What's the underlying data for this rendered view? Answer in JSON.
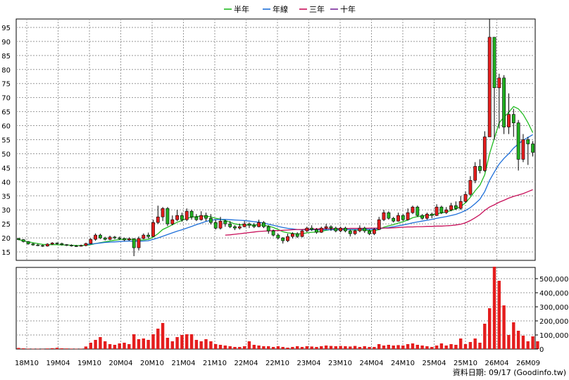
{
  "legend": [
    {
      "name": "半年",
      "color": "#22bb22"
    },
    {
      "name": "年線",
      "color": "#1e6fd9"
    },
    {
      "name": "三年",
      "color": "#c8105a"
    },
    {
      "name": "十年",
      "color": "#7a2a9a"
    }
  ],
  "footer_note": "資料日期: 09/17  (Goodinfo.tw)",
  "colors": {
    "up": "#e41d1d",
    "down": "#21b121",
    "volume": "#e41d1d",
    "grid": "#999999"
  },
  "chart_data": [
    {
      "type": "candlestick",
      "x_labels": [
        "18M10",
        "19M04",
        "19M10",
        "20M04",
        "20M10",
        "21M04",
        "21M10",
        "22M04",
        "22M10",
        "23M04",
        "23M10",
        "24M04",
        "24M10",
        "25M04",
        "25M10",
        "26M04",
        "26M09"
      ],
      "y_ticks": [
        15,
        20,
        25,
        30,
        35,
        40,
        45,
        50,
        55,
        60,
        65,
        70,
        75,
        80,
        85,
        90,
        95
      ],
      "ylim": [
        12,
        98
      ],
      "grid": true,
      "legend_position": "top-center",
      "candles": [
        [
          19.8,
          19.4,
          20.0,
          19.2
        ],
        [
          19.4,
          18.7,
          19.6,
          18.4
        ],
        [
          18.7,
          17.9,
          18.9,
          17.6
        ],
        [
          17.9,
          17.5,
          18.2,
          17.2
        ],
        [
          17.5,
          17.3,
          17.9,
          17.1
        ],
        [
          17.3,
          17.1,
          17.6,
          16.8
        ],
        [
          17.1,
          17.8,
          18.1,
          16.9
        ],
        [
          17.8,
          18.2,
          18.5,
          17.5
        ],
        [
          18.2,
          18.0,
          18.4,
          17.6
        ],
        [
          18.0,
          17.6,
          18.3,
          17.3
        ],
        [
          17.6,
          17.4,
          17.8,
          17.1
        ],
        [
          17.4,
          17.2,
          17.7,
          16.9
        ],
        [
          17.2,
          17.1,
          17.5,
          16.8
        ],
        [
          17.1,
          17.3,
          17.6,
          16.9
        ],
        [
          17.3,
          18.0,
          18.3,
          17.0
        ],
        [
          18.0,
          19.5,
          19.9,
          17.8
        ],
        [
          19.5,
          21.0,
          21.6,
          19.0
        ],
        [
          21.0,
          20.0,
          21.5,
          19.6
        ],
        [
          20.0,
          19.5,
          20.4,
          19.1
        ],
        [
          19.5,
          20.3,
          20.8,
          19.2
        ],
        [
          20.3,
          20.0,
          20.7,
          19.6
        ],
        [
          20.0,
          19.8,
          20.5,
          19.3
        ],
        [
          19.8,
          19.3,
          20.1,
          18.9
        ],
        [
          19.3,
          19.7,
          20.2,
          19.0
        ],
        [
          19.7,
          16.5,
          19.9,
          13.5
        ],
        [
          16.5,
          19.8,
          20.5,
          15.5
        ],
        [
          19.8,
          21.0,
          21.6,
          19.5
        ],
        [
          21.0,
          20.5,
          21.9,
          19.8
        ],
        [
          20.5,
          25.5,
          26.5,
          20.3
        ],
        [
          25.5,
          27.5,
          31.5,
          25.0
        ],
        [
          27.5,
          30.5,
          31.0,
          26.0
        ],
        [
          30.5,
          25.0,
          31.0,
          24.2
        ],
        [
          25.0,
          26.5,
          28.0,
          24.5
        ],
        [
          26.5,
          28.0,
          30.0,
          26.0
        ],
        [
          28.0,
          26.5,
          29.0,
          25.8
        ],
        [
          26.5,
          29.5,
          30.5,
          26.0
        ],
        [
          29.5,
          27.5,
          30.0,
          26.5
        ],
        [
          27.5,
          26.5,
          28.5,
          26.0
        ],
        [
          26.5,
          28.0,
          29.5,
          26.2
        ],
        [
          28.0,
          27.0,
          29.0,
          26.0
        ],
        [
          27.0,
          25.5,
          28.5,
          24.8
        ],
        [
          25.5,
          23.5,
          26.5,
          23.0
        ],
        [
          23.5,
          26.0,
          27.5,
          23.0
        ],
        [
          26.0,
          25.0,
          26.5,
          24.0
        ],
        [
          25.0,
          24.0,
          26.0,
          23.5
        ],
        [
          24.0,
          23.5,
          24.5,
          22.8
        ],
        [
          23.5,
          24.0,
          25.0,
          23.0
        ],
        [
          24.0,
          25.0,
          26.0,
          23.8
        ],
        [
          25.0,
          24.5,
          25.5,
          23.5
        ],
        [
          24.5,
          24.0,
          25.3,
          23.5
        ],
        [
          24.0,
          25.5,
          26.5,
          23.8
        ],
        [
          25.5,
          24.0,
          26.0,
          23.5
        ],
        [
          24.0,
          22.5,
          24.5,
          21.5
        ],
        [
          22.5,
          21.0,
          23.0,
          20.5
        ],
        [
          21.0,
          20.0,
          21.5,
          19.5
        ],
        [
          20.0,
          19.0,
          20.3,
          18.0
        ],
        [
          19.0,
          20.5,
          21.5,
          18.5
        ],
        [
          20.5,
          21.5,
          22.0,
          19.8
        ],
        [
          21.5,
          20.5,
          22.0,
          20.0
        ],
        [
          20.5,
          22.5,
          23.0,
          20.2
        ],
        [
          22.5,
          23.5,
          24.0,
          22.0
        ],
        [
          23.5,
          23.0,
          24.5,
          22.5
        ],
        [
          23.0,
          22.0,
          23.5,
          21.5
        ],
        [
          22.0,
          23.5,
          24.0,
          21.8
        ],
        [
          23.5,
          24.0,
          25.0,
          23.0
        ],
        [
          24.0,
          23.5,
          24.5,
          22.5
        ],
        [
          23.5,
          22.5,
          24.0,
          22.0
        ],
        [
          22.5,
          23.5,
          24.0,
          22.0
        ],
        [
          23.5,
          22.5,
          24.0,
          22.0
        ],
        [
          22.5,
          21.5,
          23.0,
          20.5
        ],
        [
          21.5,
          22.5,
          23.0,
          21.0
        ],
        [
          22.5,
          23.5,
          24.5,
          22.0
        ],
        [
          23.5,
          22.5,
          24.0,
          21.8
        ],
        [
          22.5,
          21.5,
          23.0,
          21.0
        ],
        [
          21.5,
          23.0,
          23.5,
          21.0
        ],
        [
          23.0,
          26.5,
          27.5,
          22.8
        ],
        [
          26.5,
          29.0,
          30.0,
          26.0
        ],
        [
          29.0,
          27.0,
          29.5,
          26.5
        ],
        [
          27.0,
          26.0,
          27.5,
          25.5
        ],
        [
          26.0,
          28.0,
          29.0,
          25.8
        ],
        [
          28.0,
          26.5,
          28.5,
          26.0
        ],
        [
          26.5,
          29.0,
          30.5,
          26.2
        ],
        [
          29.0,
          31.0,
          31.5,
          28.5
        ],
        [
          31.0,
          28.0,
          31.5,
          27.5
        ],
        [
          28.0,
          27.0,
          28.5,
          26.5
        ],
        [
          27.0,
          28.5,
          29.0,
          26.5
        ],
        [
          28.5,
          28.0,
          29.0,
          27.0
        ],
        [
          28.0,
          31.0,
          32.0,
          27.8
        ],
        [
          31.0,
          29.0,
          31.5,
          28.5
        ],
        [
          29.0,
          30.0,
          31.0,
          28.5
        ],
        [
          30.0,
          31.5,
          32.5,
          29.5
        ],
        [
          31.5,
          30.5,
          33.0,
          30.0
        ],
        [
          30.5,
          33.0,
          35.0,
          30.0
        ],
        [
          33.0,
          35.5,
          36.5,
          32.5
        ],
        [
          35.5,
          40.5,
          42.0,
          35.0
        ],
        [
          40.5,
          45.5,
          47.0,
          39.5
        ],
        [
          45.5,
          44.0,
          48.0,
          43.0
        ],
        [
          44.0,
          56.0,
          58.0,
          43.5
        ],
        [
          56.0,
          91.5,
          98.0,
          56.0
        ],
        [
          91.5,
          73.5,
          80.0,
          55.0
        ],
        [
          73.5,
          77.0,
          78.5,
          59.0
        ],
        [
          77.0,
          59.5,
          78.0,
          57.0
        ],
        [
          59.5,
          64.0,
          71.5,
          57.0
        ],
        [
          64.0,
          61.0,
          66.0,
          56.0
        ],
        [
          61.0,
          48.0,
          62.0,
          44.0
        ],
        [
          48.0,
          55.0,
          57.0,
          47.0
        ],
        [
          55.0,
          53.5,
          56.0,
          46.0
        ],
        [
          53.5,
          50.5,
          54.5,
          49.0
        ]
      ],
      "series": [
        {
          "name": "半年",
          "values": [
            19.4,
            19.0,
            18.6,
            18.3,
            18.0,
            17.7,
            17.6,
            17.6,
            17.6,
            17.5,
            17.5,
            17.4,
            17.3,
            17.3,
            17.4,
            17.6,
            18.0,
            18.3,
            18.6,
            18.9,
            19.2,
            19.4,
            19.5,
            19.6,
            19.3,
            19.2,
            19.3,
            19.5,
            20.3,
            21.5,
            23.0,
            23.8,
            24.7,
            25.6,
            26.2,
            27.0,
            27.4,
            27.6,
            27.8,
            27.8,
            27.5,
            27.0,
            26.7,
            26.2,
            25.6,
            25.0,
            24.7,
            24.6,
            24.6,
            24.6,
            24.6,
            24.5,
            24.2,
            23.7,
            23.0,
            22.2,
            21.8,
            21.6,
            21.4,
            21.5,
            21.8,
            22.0,
            22.1,
            22.3,
            22.7,
            23.0,
            23.1,
            23.1,
            23.1,
            22.9,
            22.8,
            22.8,
            22.8,
            22.6,
            22.5,
            23.0,
            23.8,
            24.3,
            24.7,
            25.3,
            25.8,
            26.4,
            27.2,
            27.6,
            27.8,
            28.0,
            28.1,
            28.6,
            28.9,
            29.2,
            29.8,
            30.3,
            31.2,
            32.5,
            34.5,
            36.8,
            38.8,
            42.5,
            50.0,
            55.5,
            61.0,
            63.0,
            64.8,
            66.8,
            66.0,
            64.0,
            61.0,
            57.5
          ]
        },
        {
          "name": "年線",
          "values": [
            null,
            null,
            null,
            null,
            null,
            null,
            null,
            null,
            null,
            null,
            null,
            null,
            null,
            null,
            17.7,
            17.8,
            18.0,
            18.2,
            18.4,
            18.5,
            18.6,
            18.7,
            18.8,
            18.9,
            18.8,
            18.8,
            18.9,
            19.0,
            19.5,
            20.0,
            20.6,
            21.2,
            21.8,
            22.4,
            22.9,
            23.5,
            24.1,
            24.7,
            25.3,
            25.9,
            26.3,
            26.5,
            26.6,
            26.6,
            26.5,
            26.4,
            26.3,
            26.2,
            26.0,
            25.8,
            25.6,
            25.3,
            24.9,
            24.5,
            24.1,
            23.7,
            23.4,
            23.2,
            23.0,
            22.9,
            22.9,
            22.9,
            22.9,
            22.9,
            22.9,
            22.9,
            22.9,
            22.9,
            23.0,
            23.0,
            23.0,
            23.0,
            23.1,
            23.1,
            23.1,
            23.3,
            23.5,
            23.7,
            24.0,
            24.3,
            24.6,
            25.0,
            25.4,
            25.7,
            26.0,
            26.3,
            26.6,
            27.0,
            27.3,
            27.6,
            28.0,
            28.4,
            29.0,
            29.8,
            30.8,
            32.2,
            33.8,
            36.5,
            40.5,
            43.5,
            46.3,
            48.3,
            50.0,
            52.0,
            53.5,
            54.8,
            55.8,
            56.8
          ]
        },
        {
          "name": "三年",
          "values": [
            null,
            null,
            null,
            null,
            null,
            null,
            null,
            null,
            null,
            null,
            null,
            null,
            null,
            null,
            null,
            null,
            null,
            null,
            null,
            null,
            null,
            null,
            null,
            null,
            null,
            null,
            null,
            null,
            null,
            null,
            null,
            null,
            null,
            null,
            null,
            null,
            null,
            null,
            null,
            null,
            null,
            null,
            null,
            21.0,
            21.1,
            21.3,
            21.5,
            21.7,
            21.9,
            22.1,
            22.3,
            22.4,
            22.5,
            22.6,
            22.6,
            22.7,
            22.8,
            22.9,
            23.0,
            23.0,
            23.1,
            23.1,
            23.2,
            23.2,
            23.3,
            23.3,
            23.3,
            23.3,
            23.3,
            23.4,
            23.4,
            23.4,
            23.4,
            23.5,
            23.5,
            23.5,
            23.5,
            23.5,
            23.6,
            23.7,
            23.8,
            23.9,
            23.9,
            24.0,
            24.0,
            24.1,
            24.1,
            24.2,
            24.2,
            24.3,
            24.4,
            24.6,
            24.9,
            25.4,
            26.2,
            27.2,
            28.3,
            29.8,
            31.0,
            31.8,
            32.7,
            33.4,
            34.2,
            34.8,
            35.3,
            35.8,
            36.5,
            37.2
          ]
        }
      ]
    },
    {
      "type": "bar",
      "name": "volume",
      "y_ticks_labels": [
        "0",
        "100,000",
        "200,000",
        "300,000",
        "400,000",
        "500,000"
      ],
      "ylim": [
        0,
        580000
      ],
      "values": [
        8000,
        5000,
        3000,
        2000,
        2000,
        1000,
        4000,
        6000,
        9000,
        5000,
        4000,
        3000,
        2000,
        3000,
        18000,
        45000,
        65000,
        85000,
        55000,
        35000,
        30000,
        40000,
        45000,
        35000,
        105000,
        70000,
        75000,
        65000,
        105000,
        145000,
        185000,
        80000,
        55000,
        85000,
        100000,
        105000,
        105000,
        65000,
        55000,
        70000,
        55000,
        35000,
        30000,
        25000,
        20000,
        15000,
        15000,
        20000,
        55000,
        30000,
        25000,
        20000,
        20000,
        15000,
        20000,
        15000,
        10000,
        15000,
        20000,
        15000,
        20000,
        18000,
        15000,
        20000,
        25000,
        22000,
        20000,
        22000,
        20000,
        18000,
        22000,
        15000,
        20000,
        15000,
        15000,
        35000,
        25000,
        30000,
        25000,
        28000,
        25000,
        35000,
        40000,
        30000,
        25000,
        20000,
        15000,
        25000,
        40000,
        25000,
        35000,
        30000,
        75000,
        35000,
        50000,
        75000,
        45000,
        180000,
        290000,
        585000,
        485000,
        310000,
        100000,
        190000,
        130000,
        95000,
        55000,
        90000,
        55000
      ]
    }
  ]
}
